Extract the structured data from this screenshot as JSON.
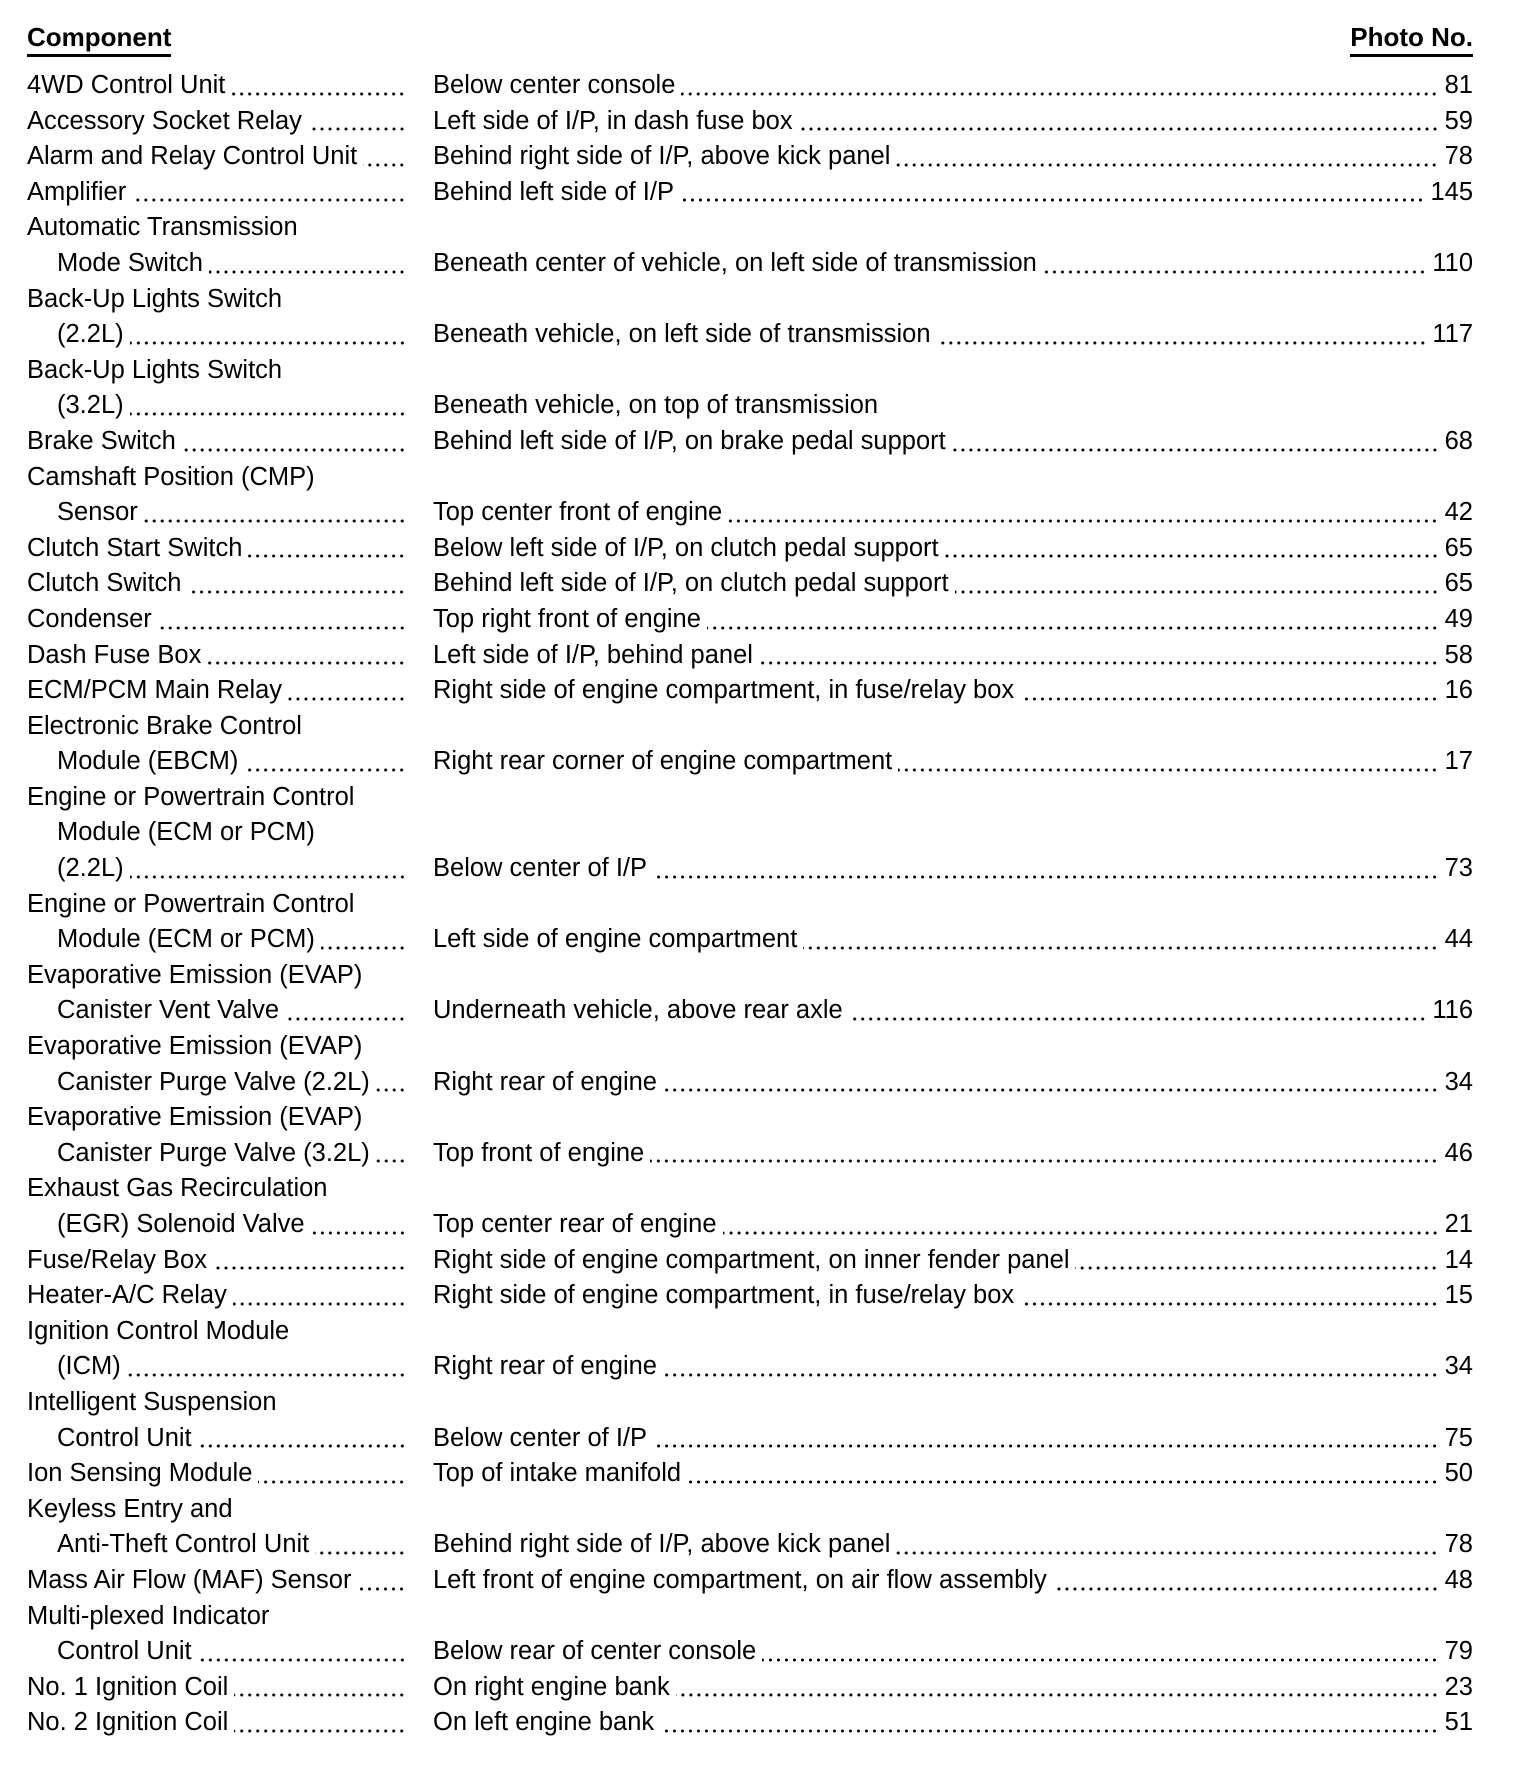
{
  "headers": {
    "component": "Component",
    "photo": "Photo No."
  },
  "entries": [
    {
      "component": [
        "4WD Control Unit"
      ],
      "location": "Below center console",
      "photo": "81"
    },
    {
      "component": [
        "Accessory Socket Relay"
      ],
      "location": "Left side of I/P, in dash fuse box",
      "photo": "59"
    },
    {
      "component": [
        "Alarm and Relay Control Unit"
      ],
      "location": "Behind right side of I/P, above kick panel",
      "photo": "78"
    },
    {
      "component": [
        "Amplifier"
      ],
      "location": "Behind left side of I/P",
      "photo": "145"
    },
    {
      "component": [
        "Automatic Transmission",
        "Mode Switch"
      ],
      "location": "Beneath center of vehicle, on left side of transmission",
      "photo": "110"
    },
    {
      "component": [
        "Back-Up Lights Switch",
        "(2.2L)"
      ],
      "location": "Beneath vehicle, on left side of transmission",
      "photo": "117"
    },
    {
      "component": [
        "Back-Up Lights Switch",
        "(3.2L)"
      ],
      "location": "Beneath vehicle, on top of transmission",
      "photo": ""
    },
    {
      "component": [
        "Brake Switch"
      ],
      "location": "Behind left side of I/P, on brake pedal support",
      "photo": "68"
    },
    {
      "component": [
        "Camshaft Position (CMP)",
        "Sensor"
      ],
      "location": "Top center front of engine",
      "photo": "42"
    },
    {
      "component": [
        "Clutch Start Switch"
      ],
      "location": "Below left side of I/P, on clutch pedal support",
      "photo": "65"
    },
    {
      "component": [
        "Clutch Switch"
      ],
      "location": "Behind left side of I/P, on clutch pedal support",
      "photo": "65"
    },
    {
      "component": [
        "Condenser"
      ],
      "location": "Top right front of engine",
      "photo": "49"
    },
    {
      "component": [
        "Dash Fuse Box"
      ],
      "location": "Left side of I/P, behind panel",
      "photo": "58"
    },
    {
      "component": [
        "ECM/PCM Main Relay"
      ],
      "location": "Right side of engine compartment, in fuse/relay box",
      "photo": "16"
    },
    {
      "component": [
        "Electronic Brake Control",
        "Module (EBCM)"
      ],
      "location": "Right rear corner of engine compartment",
      "photo": "17"
    },
    {
      "component": [
        "Engine or Powertrain Control",
        "Module (ECM or PCM)",
        "(2.2L)"
      ],
      "location": "Below center of I/P",
      "photo": "73"
    },
    {
      "component": [
        "Engine or Powertrain Control",
        "Module (ECM or PCM)"
      ],
      "location": "Left side of engine compartment",
      "photo": "44"
    },
    {
      "component": [
        "Evaporative Emission (EVAP)",
        "Canister Vent Valve"
      ],
      "location": "Underneath vehicle, above rear axle",
      "photo": "116"
    },
    {
      "component": [
        "Evaporative Emission (EVAP)",
        "Canister Purge Valve (2.2L)"
      ],
      "location": "Right rear of engine",
      "photo": "34"
    },
    {
      "component": [
        "Evaporative Emission (EVAP)",
        "Canister Purge Valve (3.2L)"
      ],
      "location": "Top front of engine",
      "photo": "46"
    },
    {
      "component": [
        "Exhaust Gas Recirculation",
        "(EGR) Solenoid Valve"
      ],
      "location": "Top center rear of engine",
      "photo": "21"
    },
    {
      "component": [
        "Fuse/Relay Box"
      ],
      "location": "Right side of engine compartment, on inner fender panel",
      "photo": "14"
    },
    {
      "component": [
        "Heater-A/C Relay"
      ],
      "location": "Right side of engine compartment, in fuse/relay box",
      "photo": "15"
    },
    {
      "component": [
        "Ignition Control Module",
        "(ICM)"
      ],
      "location": "Right rear of engine",
      "photo": "34"
    },
    {
      "component": [
        "Intelligent Suspension",
        "Control Unit"
      ],
      "location": "Below center of I/P",
      "photo": "75"
    },
    {
      "component": [
        "Ion Sensing Module"
      ],
      "location": "Top of intake manifold",
      "photo": "50"
    },
    {
      "component": [
        "Keyless Entry and",
        "Anti-Theft Control Unit"
      ],
      "location": "Behind right side of I/P, above kick panel",
      "photo": "78"
    },
    {
      "component": [
        "Mass Air Flow (MAF) Sensor"
      ],
      "location": "Left front of engine compartment, on air flow assembly",
      "photo": "48"
    },
    {
      "component": [
        "Multi-plexed Indicator",
        "Control Unit"
      ],
      "location": "Below rear of center console",
      "photo": "79"
    },
    {
      "component": [
        "No. 1 Ignition Coil"
      ],
      "location": "On right engine bank",
      "photo": "23"
    },
    {
      "component": [
        "No. 2 Ignition Coil"
      ],
      "location": "On left engine bank",
      "photo": "51"
    }
  ]
}
